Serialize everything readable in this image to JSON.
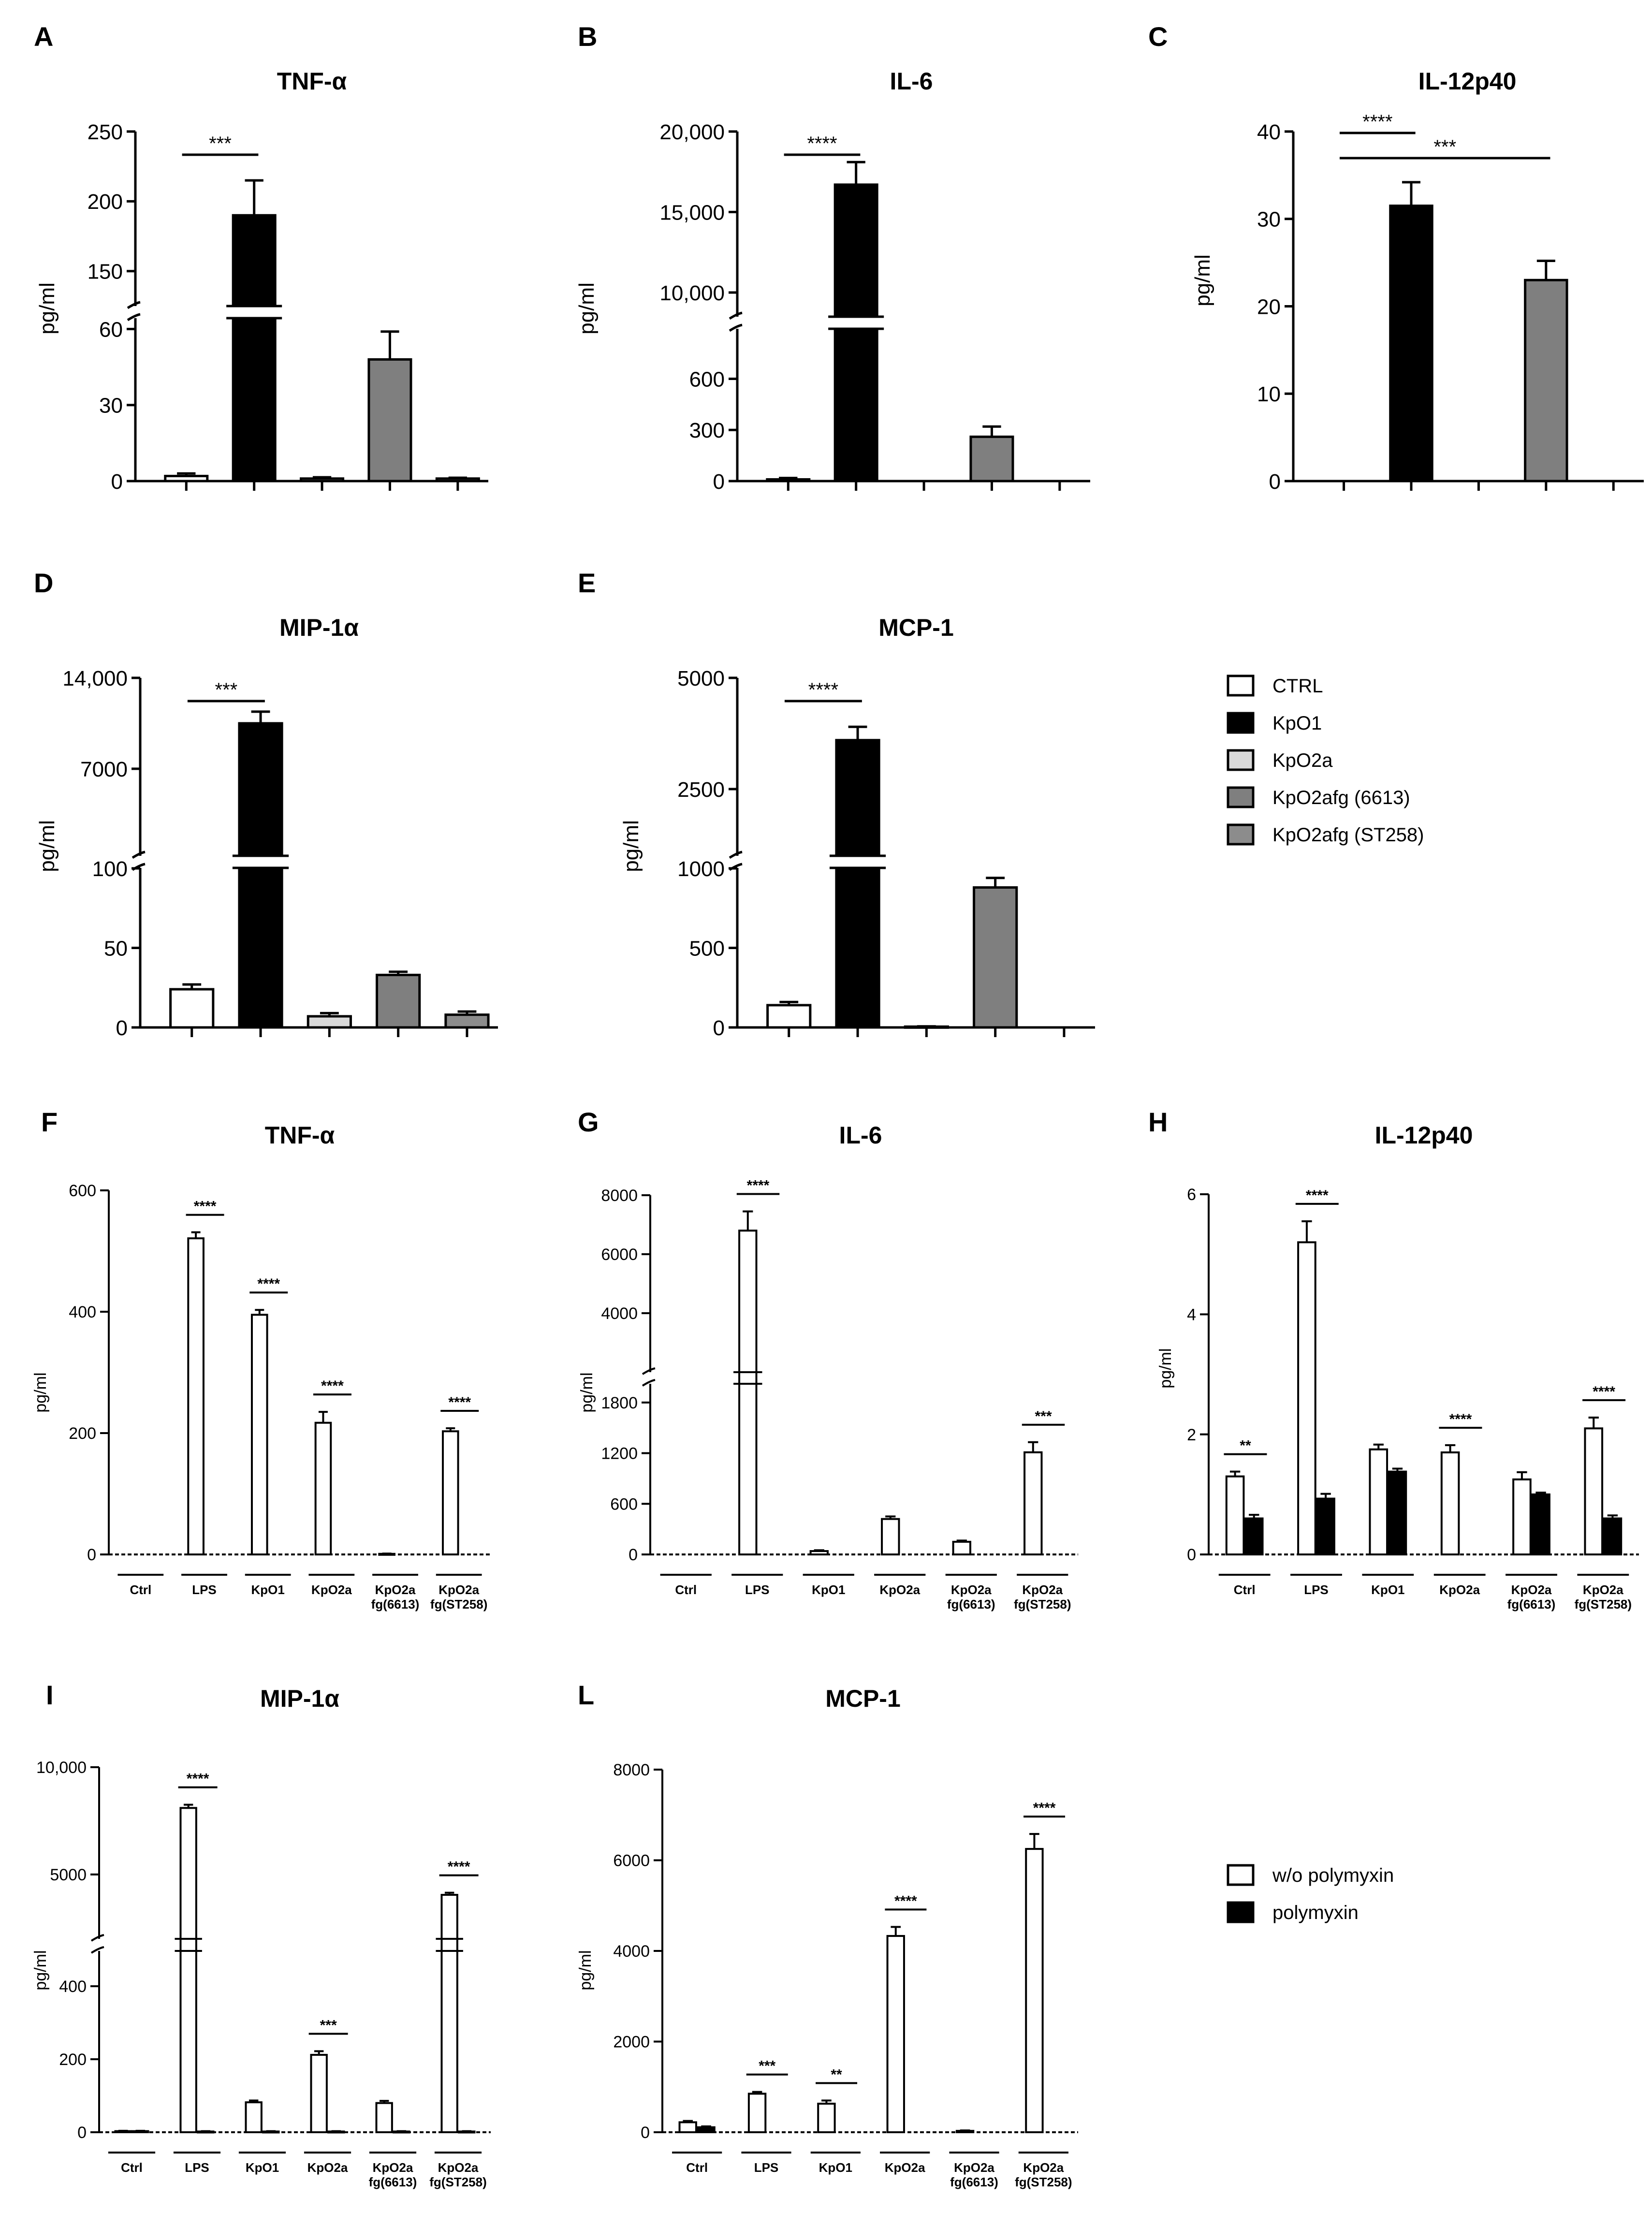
{
  "figure": {
    "colors": {
      "ctrl": "#ffffff",
      "kpo1": "#000000",
      "kpo2a": "#d9d9d9",
      "kpo2afg_6613": "#7f7f7f",
      "kpo2afg_st258": "#8c8c8c",
      "with_polymyxin": "#000000",
      "without_polymyxin": "#ffffff"
    },
    "legend_top": {
      "entries": [
        "CTRL",
        "KpO1",
        "KpO2a",
        "KpO2afg (6613)",
        "KpO2afg (ST258)"
      ]
    },
    "legend_bottom": {
      "entries": [
        "w/o polymyxin",
        "polymyxin"
      ]
    }
  },
  "chart_data": [
    {
      "id": "A",
      "panel": "A",
      "type": "bar",
      "title": "TNF-α",
      "ylabel": "pg/ml",
      "xlabel": "",
      "categories": [
        "CTRL",
        "KpO1",
        "KpO2a",
        "KpO2afg (6613)",
        "KpO2afg (ST258)"
      ],
      "values": [
        2,
        190,
        1,
        48,
        1
      ],
      "errors": [
        1,
        25,
        0.5,
        11,
        0.3
      ],
      "axis_break": {
        "lower": [
          0,
          60
        ],
        "upper": [
          125,
          250
        ]
      },
      "tick_labels": [
        "0",
        "30",
        "60",
        "150",
        "200",
        "250"
      ],
      "significance": [
        {
          "from": 0,
          "to": 1,
          "label": "***"
        }
      ]
    },
    {
      "id": "B",
      "panel": "B",
      "type": "bar",
      "title": "IL-6",
      "ylabel": "pg/ml",
      "xlabel": "",
      "categories": [
        "CTRL",
        "KpO1",
        "KpO2a",
        "KpO2afg (6613)",
        "KpO2afg (ST258)"
      ],
      "values": [
        10,
        16700,
        0,
        260,
        0
      ],
      "errors": [
        8,
        1400,
        0,
        60,
        0
      ],
      "axis_break": {
        "lower": [
          0,
          800
        ],
        "upper": [
          8500,
          20000
        ]
      },
      "tick_labels": [
        "0",
        "300",
        "600",
        "10,000",
        "15,000",
        "20,000"
      ],
      "significance": [
        {
          "from": 0,
          "to": 1,
          "label": "****"
        }
      ]
    },
    {
      "id": "C",
      "panel": "C",
      "type": "bar",
      "title": "IL-12p40",
      "ylabel": "pg/ml",
      "xlabel": "",
      "categories": [
        "CTRL",
        "KpO1",
        "KpO2a",
        "KpO2afg (6613)",
        "KpO2afg (ST258)"
      ],
      "values": [
        0,
        31.5,
        0,
        23,
        0
      ],
      "errors": [
        0,
        2.7,
        0,
        2.2,
        0
      ],
      "ylim": [
        0,
        40
      ],
      "tick_labels": [
        "0",
        "10",
        "20",
        "30",
        "40"
      ],
      "significance": [
        {
          "from": 0,
          "to": 1,
          "label": "****"
        },
        {
          "from": 0,
          "to": 3,
          "label": "***"
        }
      ]
    },
    {
      "id": "D",
      "panel": "D",
      "type": "bar",
      "title": "MIP-1α",
      "ylabel": "pg/ml",
      "xlabel": "",
      "categories": [
        "CTRL",
        "KpO1",
        "KpO2a",
        "KpO2afg (6613)",
        "KpO2afg (ST258)"
      ],
      "values": [
        24,
        10500,
        7,
        33,
        8
      ],
      "errors": [
        3,
        900,
        2,
        2,
        2
      ],
      "axis_break": {
        "lower": [
          0,
          100
        ],
        "upper": [
          300,
          14000
        ]
      },
      "tick_labels": [
        "0",
        "50",
        "100",
        "7000",
        "14,000"
      ],
      "significance": [
        {
          "from": 0,
          "to": 1,
          "label": "***"
        }
      ]
    },
    {
      "id": "E",
      "panel": "E",
      "type": "bar",
      "title": "MCP-1",
      "ylabel": "pg/ml",
      "xlabel": "",
      "categories": [
        "CTRL",
        "KpO1",
        "KpO2a",
        "KpO2afg (6613)",
        "KpO2afg (ST258)"
      ],
      "values": [
        140,
        3600,
        5,
        880,
        0
      ],
      "errors": [
        20,
        300,
        2,
        60,
        0
      ],
      "axis_break": {
        "lower": [
          0,
          1000
        ],
        "upper": [
          1000,
          5000
        ]
      },
      "tick_labels": [
        "0",
        "500",
        "1000",
        "2500",
        "5000"
      ],
      "significance": [
        {
          "from": 0,
          "to": 1,
          "label": "****"
        }
      ]
    },
    {
      "id": "F",
      "panel": "F",
      "type": "bar",
      "title": "TNF-α",
      "ylabel": "pg/ml",
      "xlabel": "",
      "categories": [
        "Ctrl",
        "LPS",
        "KpO1",
        "KpO2a",
        "KpO2a\nfg(6613)",
        "KpO2a\nfg(ST258)"
      ],
      "series": [
        {
          "name": "w/o polymyxin",
          "values": [
            0,
            521,
            395,
            217,
            1,
            203
          ],
          "errors": [
            0,
            10,
            8,
            18,
            0.5,
            5
          ]
        },
        {
          "name": "polymyxin",
          "values": [
            0,
            0,
            0,
            0,
            0,
            0
          ],
          "errors": [
            0,
            0,
            0,
            0,
            0,
            0
          ]
        }
      ],
      "ylim": [
        0,
        600
      ],
      "tick_labels": [
        "0",
        "200",
        "400",
        "600"
      ],
      "significance": [
        {
          "group": 1,
          "label": "****"
        },
        {
          "group": 2,
          "label": "****"
        },
        {
          "group": 3,
          "label": "****"
        },
        {
          "group": 5,
          "label": "****"
        }
      ]
    },
    {
      "id": "G",
      "panel": "G",
      "type": "bar",
      "title": "IL-6",
      "ylabel": "pg/ml",
      "xlabel": "",
      "categories": [
        "Ctrl",
        "LPS",
        "KpO1",
        "KpO2a",
        "KpO2a\nfg(6613)",
        "KpO2a\nfg(ST258)"
      ],
      "series": [
        {
          "name": "w/o polymyxin",
          "values": [
            0,
            6800,
            40,
            420,
            150,
            1210
          ],
          "errors": [
            0,
            650,
            10,
            30,
            15,
            120
          ]
        },
        {
          "name": "polymyxin",
          "values": [
            0,
            0,
            0,
            0,
            0,
            0
          ],
          "errors": [
            0,
            0,
            0,
            0,
            0,
            0
          ]
        }
      ],
      "axis_break": {
        "lower": [
          0,
          2000
        ],
        "upper": [
          2000,
          8000
        ]
      },
      "tick_labels": [
        "0",
        "600",
        "1200",
        "1800",
        "4000",
        "6000",
        "8000"
      ],
      "significance": [
        {
          "group": 1,
          "label": "****"
        },
        {
          "group": 5,
          "label": "***"
        }
      ]
    },
    {
      "id": "H",
      "panel": "H",
      "type": "bar",
      "title": "IL-12p40",
      "ylabel": "pg/ml",
      "xlabel": "",
      "categories": [
        "Ctrl",
        "LPS",
        "KpO1",
        "KpO2a",
        "KpO2a\nfg(6613)",
        "KpO2a\nfg(ST258)"
      ],
      "series": [
        {
          "name": "w/o polymyxin",
          "values": [
            1.3,
            5.2,
            1.75,
            1.7,
            1.25,
            2.1
          ],
          "errors": [
            0.08,
            0.35,
            0.08,
            0.12,
            0.12,
            0.18
          ]
        },
        {
          "name": "polymyxin",
          "values": [
            0.6,
            0.93,
            1.38,
            0,
            1.0,
            0.6
          ],
          "errors": [
            0.06,
            0.08,
            0.05,
            0,
            0.03,
            0.05
          ]
        }
      ],
      "ylim": [
        0,
        6
      ],
      "tick_labels": [
        "0",
        "2",
        "4",
        "6"
      ],
      "significance": [
        {
          "group": 0,
          "label": "**"
        },
        {
          "group": 1,
          "label": "****"
        },
        {
          "group": 3,
          "label": "****"
        },
        {
          "group": 5,
          "label": "****"
        }
      ]
    },
    {
      "id": "I",
      "panel": "I",
      "type": "bar",
      "title": "MIP-1α",
      "ylabel": "pg/ml",
      "xlabel": "",
      "categories": [
        "Ctrl",
        "LPS",
        "KpO1",
        "KpO2a",
        "KpO2a\nfg(6613)",
        "KpO2a\nfg(ST258)"
      ],
      "series": [
        {
          "name": "w/o polymyxin",
          "values": [
            3,
            8100,
            82,
            212,
            80,
            4050
          ],
          "errors": [
            1,
            150,
            5,
            10,
            6,
            100
          ]
        },
        {
          "name": "polymyxin",
          "values": [
            3,
            2,
            2,
            2,
            2,
            2
          ],
          "errors": [
            1,
            1,
            1,
            1,
            1,
            1
          ]
        }
      ],
      "axis_break": {
        "lower": [
          0,
          500
        ],
        "upper": [
          2000,
          10000
        ]
      },
      "tick_labels": [
        "0",
        "200",
        "400",
        "5000",
        "10,000"
      ],
      "significance": [
        {
          "group": 1,
          "label": "****"
        },
        {
          "group": 3,
          "label": "***"
        },
        {
          "group": 5,
          "label": "****"
        }
      ]
    },
    {
      "id": "L",
      "panel": "L",
      "type": "bar",
      "title": "MCP-1",
      "ylabel": "pg/ml",
      "xlabel": "",
      "categories": [
        "Ctrl",
        "LPS",
        "KpO1",
        "KpO2a",
        "KpO2a\nfg(6613)",
        "KpO2a\nfg(ST258)"
      ],
      "series": [
        {
          "name": "w/o polymyxin",
          "values": [
            220,
            850,
            630,
            4330,
            30,
            6250
          ],
          "errors": [
            30,
            40,
            70,
            200,
            10,
            330
          ]
        },
        {
          "name": "polymyxin",
          "values": [
            110,
            0,
            0,
            0,
            0,
            0
          ],
          "errors": [
            20,
            0,
            0,
            0,
            0,
            0
          ]
        }
      ],
      "ylim": [
        0,
        8000
      ],
      "tick_labels": [
        "0",
        "2000",
        "4000",
        "6000",
        "8000"
      ],
      "significance": [
        {
          "group": 1,
          "label": "***"
        },
        {
          "group": 2,
          "label": "**"
        },
        {
          "group": 3,
          "label": "****"
        },
        {
          "group": 5,
          "label": "****"
        }
      ]
    }
  ]
}
